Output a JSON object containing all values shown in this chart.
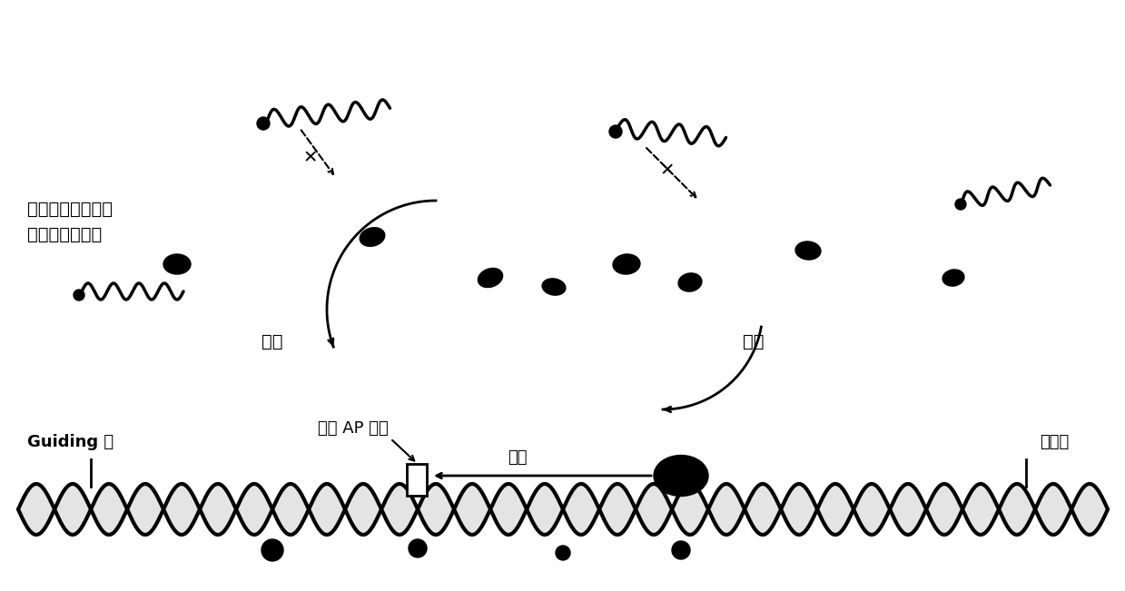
{
  "bg_color": "#ffffff",
  "text_label_annotation": "因信号放大需要而\n使用的过量探针",
  "label_jieli": "解离",
  "label_jiehe": "结合",
  "label_saomiao": "扫描",
  "label_qiege": "切割 AP 位点",
  "label_guiding": "Guiding 链",
  "label_diw": "底物链",
  "title_fontsize": 14
}
